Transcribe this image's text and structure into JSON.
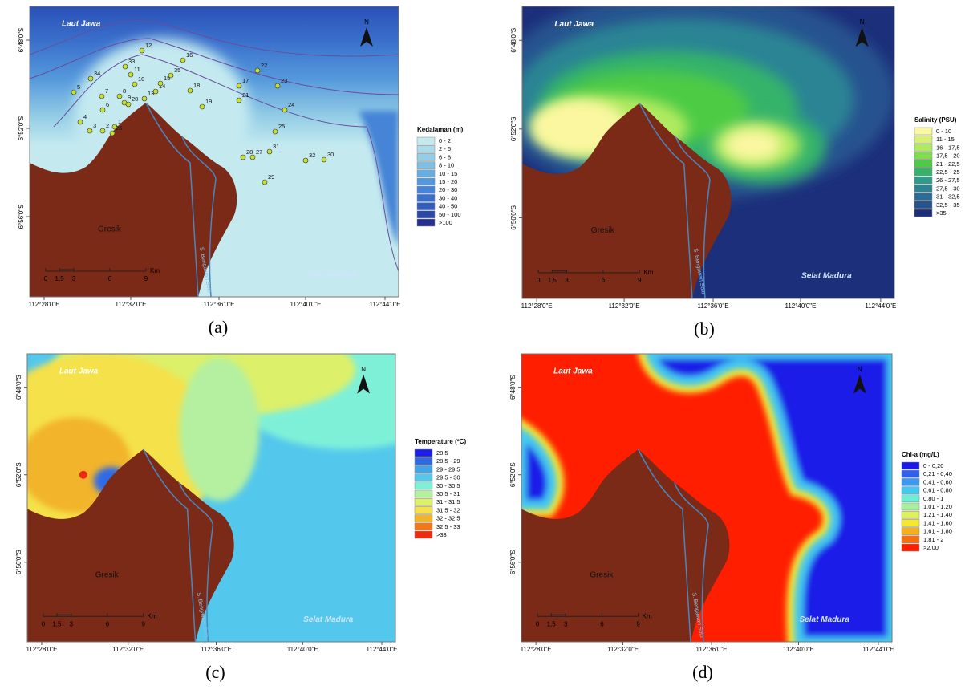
{
  "panels": [
    {
      "caption": "(a)",
      "sea_label": "Laut Jawa",
      "town_label": "Gresik",
      "river_label": "S. Bengawan Solo",
      "strait_label": "Selat Madura",
      "north": "N",
      "scale_labels": [
        "0",
        "1,5",
        "3",
        "6",
        "9"
      ],
      "scale_unit": "Km",
      "lat_labels": [
        "6°48'0\"S",
        "6°52'0\"S",
        "6°56'0\"S"
      ],
      "lon_labels": [
        "112°28'0\"E",
        "112°32'0\"E",
        "112°36'0\"E",
        "112°40'0\"E",
        "112°44'0\"E"
      ],
      "legend": {
        "title": "Kedalaman (m)",
        "items": [
          "0 - 2",
          "2 - 6",
          "6 - 8",
          "8 - 10",
          "10 - 15",
          "15 - 20",
          "20 - 30",
          "30 - 40",
          "40 - 50",
          "50 - 100",
          ">100"
        ],
        "colors": [
          "#c4eaf0",
          "#a9dbe9",
          "#94cde6",
          "#7fbfe3",
          "#68ade0",
          "#5599dc",
          "#4584d6",
          "#3a70cc",
          "#325cbd",
          "#2b48a8",
          "#26318f"
        ]
      },
      "stations": [
        "1",
        "2",
        "3",
        "4",
        "5",
        "6",
        "7",
        "8",
        "9",
        "10",
        "11",
        "12",
        "13",
        "14",
        "15",
        "16",
        "17",
        "18",
        "19",
        "20",
        "21",
        "22",
        "23",
        "24",
        "25",
        "26",
        "27",
        "28",
        "29",
        "30",
        "31",
        "32",
        "33",
        "34",
        "35"
      ]
    },
    {
      "caption": "(b)",
      "sea_label": "Laut Jawa",
      "town_label": "Gresik",
      "river_label": "S. Bengawan Solo",
      "strait_label": "Selat Madura",
      "north": "N",
      "scale_labels": [
        "0",
        "1,5",
        "3",
        "6",
        "9"
      ],
      "scale_unit": "Km",
      "lat_labels": [
        "6°48'0\"S",
        "6°52'0\"S",
        "6°56'0\"S"
      ],
      "lon_labels": [
        "112°28'0\"E",
        "112°32'0\"E",
        "112°36'0\"E",
        "112°40'0\"E",
        "112°44'0\"E"
      ],
      "legend": {
        "title": "Salinity (PSU)",
        "items": [
          "0 - 10",
          "11 - 15",
          "16 - 17,5",
          "17,5 - 20",
          "21 - 22,5",
          "22,5 - 25",
          "26 - 27,5",
          "27,5 - 30",
          "31 - 32,5",
          "32,5 - 35",
          ">35"
        ],
        "colors": [
          "#fbf7a0",
          "#d8f07a",
          "#b0ea60",
          "#7fdc4c",
          "#4ecb44",
          "#35b36a",
          "#2e9c8a",
          "#2b8494",
          "#2a6c98",
          "#26528f",
          "#1c2f7a"
        ]
      }
    },
    {
      "caption": "(c)",
      "sea_label": "Laut Jawa",
      "town_label": "Gresik",
      "river_label": "S. Bengawan Solo",
      "strait_label": "Selat Madura",
      "north": "N",
      "scale_labels": [
        "0",
        "1,5",
        "3",
        "6",
        "9"
      ],
      "scale_unit": "Km",
      "lat_labels": [
        "6°48'0\"S",
        "6°52'0\"S",
        "6°56'0\"S"
      ],
      "lon_labels": [
        "112°28'0\"E",
        "112°32'0\"E",
        "112°36'0\"E",
        "112°40'0\"E",
        "112°44'0\"E"
      ],
      "legend": {
        "title": "Temperature (ºC)",
        "items": [
          "28,5",
          "28,5 - 29",
          "29 - 29,5",
          "29,5 - 30",
          "30 - 30,5",
          "30,5 - 31",
          "31 - 31,5",
          "31,5 - 32",
          "32 - 32,5",
          "32,5 - 33",
          ">33"
        ],
        "colors": [
          "#1a1ee8",
          "#2f6ae6",
          "#3fa4ea",
          "#54c8ec",
          "#7ff0d8",
          "#b4f0a0",
          "#dcf06a",
          "#f5e14a",
          "#f2b42a",
          "#f07a1a",
          "#ee2a10"
        ]
      }
    },
    {
      "caption": "(d)",
      "sea_label": "Laut Jawa",
      "town_label": "Gresik",
      "river_label": "S. Bengawan Solo",
      "strait_label": "Selat Madura",
      "north": "N",
      "scale_labels": [
        "0",
        "1,5",
        "3",
        "6",
        "9"
      ],
      "scale_unit": "Km",
      "lat_labels": [
        "6°48'0\"S",
        "6°52'0\"S",
        "6°56'0\"S"
      ],
      "lon_labels": [
        "112°28'0\"E",
        "112°32'0\"E",
        "112°36'0\"E",
        "112°40'0\"E",
        "112°44'0\"E"
      ],
      "legend": {
        "title": "Chl-a (mg/L)",
        "items": [
          "0 - 0,20",
          "0,21 - 0,40",
          "0,41 - 0,60",
          "0,61 - 0,80",
          "0,80 - 1",
          "1,01 - 1,20",
          "1,21 - 1,40",
          "1,41 - 1,60",
          "1,61 - 1,80",
          "1,81 - 2",
          ">2,00"
        ],
        "colors": [
          "#1a1ae8",
          "#2f60ec",
          "#3f98f0",
          "#44c8f0",
          "#6ef0d8",
          "#a8f0a0",
          "#dcf060",
          "#f5e830",
          "#f5b020",
          "#f57010",
          "#ff1e00"
        ]
      }
    }
  ]
}
